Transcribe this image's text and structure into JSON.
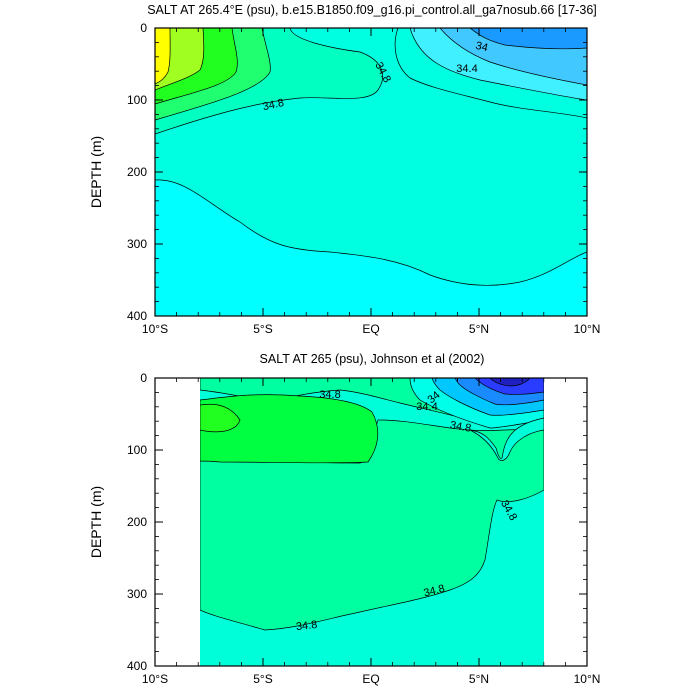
{
  "chart_data": [
    {
      "type": "contour",
      "title": "SALT AT 265.4°E (psu), b.e15.B1850.f09_g16.pi_control.all_ga7nosub.66 [17-36]",
      "ylabel": "DEPTH (m)",
      "xlabel": "",
      "x_range": [
        -10,
        10
      ],
      "y_range": [
        0,
        400
      ],
      "y_reversed": true,
      "x_ticks": [
        -10,
        -5,
        0,
        5,
        10
      ],
      "x_tick_labels": [
        "10°S",
        "5°S",
        "EQ",
        "5°N",
        "10°N"
      ],
      "y_ticks": [
        0,
        100,
        200,
        300,
        400
      ],
      "y_tick_labels": [
        "0",
        "100",
        "200",
        "300",
        "400"
      ],
      "contour_labels": [
        "34",
        "34.4",
        "34.8",
        "34.8"
      ],
      "regions_approx_psu": [
        {
          "range": "> 35.6",
          "color": "#ffff00"
        },
        {
          "range": "35.4-35.6",
          "color": "#a0ff20"
        },
        {
          "range": "35.2-35.4",
          "color": "#20ff20"
        },
        {
          "range": "35.0-35.2",
          "color": "#20ff70"
        },
        {
          "range": "34.8-35.0",
          "color": "#00ffc0"
        },
        {
          "range": "34.6-34.8",
          "color": "#00ffe0"
        },
        {
          "range": "34.4-34.6",
          "color": "#40f0ff"
        },
        {
          "range": "34.0-34.4",
          "color": "#40c8ff"
        },
        {
          "range": "< 34.0",
          "color": "#1a9aff"
        }
      ]
    },
    {
      "type": "contour",
      "title": "SALT AT 265 (psu), Johnson et al (2002)",
      "ylabel": "DEPTH (m)",
      "xlabel": "",
      "x_range": [
        -10,
        10
      ],
      "y_range": [
        0,
        400
      ],
      "y_reversed": true,
      "data_x_extent": [
        -8,
        8
      ],
      "x_ticks": [
        -10,
        -5,
        0,
        5,
        10
      ],
      "x_tick_labels": [
        "10°S",
        "5°S",
        "EQ",
        "5°N",
        "10°N"
      ],
      "y_ticks": [
        0,
        100,
        200,
        300,
        400
      ],
      "y_tick_labels": [
        "0",
        "100",
        "200",
        "300",
        "400"
      ],
      "contour_labels": [
        "34.8",
        "34",
        "34.4",
        "34.8",
        "34.8",
        "34.8",
        "34.8"
      ],
      "regions_approx_psu": [
        {
          "range": "35.0-35.2",
          "color": "#00ff40"
        },
        {
          "range": "34.8-35.0",
          "color": "#00ffa0"
        },
        {
          "range": "34.6-34.8",
          "color": "#00ffd8"
        },
        {
          "range": "< 34.6",
          "color": "#2a3cff"
        }
      ]
    }
  ]
}
